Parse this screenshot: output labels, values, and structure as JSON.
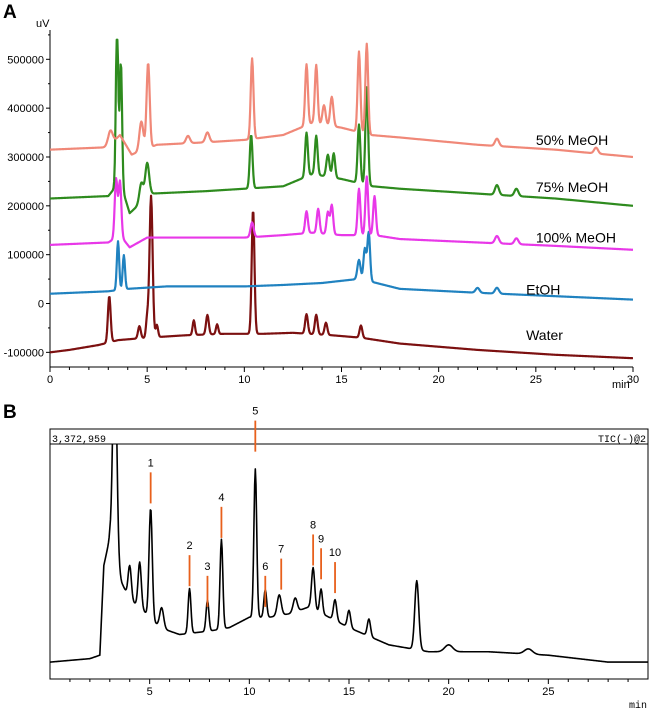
{
  "figure": {
    "panel_a_label": "A",
    "panel_b_label": "B"
  },
  "chart_data": [
    {
      "type": "line",
      "panel": "A",
      "ylabel": "uV",
      "xlabel": "min",
      "xlim": [
        0,
        30
      ],
      "ylim": [
        -130000,
        560000
      ],
      "xticks": [
        0,
        5,
        10,
        15,
        20,
        25,
        30
      ],
      "yticks": [
        {
          "value": -100000,
          "label": "-100000"
        },
        {
          "value": 0,
          "label": "0"
        },
        {
          "value": 100000,
          "label": "100000"
        },
        {
          "value": 200000,
          "label": "200000"
        },
        {
          "value": 300000,
          "label": "300000"
        },
        {
          "value": 400000,
          "label": "400000"
        },
        {
          "value": 500000,
          "label": "500000"
        }
      ],
      "grid": false,
      "series": [
        {
          "name": "50% MeOH",
          "color": "#f08878",
          "label_at": [
            25,
            325000
          ],
          "baseline": [
            [
              0,
              315000
            ],
            [
              3,
              320000
            ],
            [
              3.6,
              345000
            ],
            [
              4.2,
              305000
            ],
            [
              5.5,
              325000
            ],
            [
              8,
              330000
            ],
            [
              10,
              335000
            ],
            [
              12,
              345000
            ],
            [
              13.5,
              370000
            ],
            [
              15,
              360000
            ],
            [
              16.5,
              345000
            ],
            [
              18,
              340000
            ],
            [
              22,
              325000
            ],
            [
              26,
              315000
            ],
            [
              30,
              300000
            ]
          ],
          "peaks": [
            [
              3.1,
              30000,
              0.12
            ],
            [
              4.7,
              60000,
              0.1
            ],
            [
              5.05,
              175000,
              0.08
            ],
            [
              7.1,
              15000,
              0.1
            ],
            [
              8.1,
              20000,
              0.1
            ],
            [
              10.4,
              165000,
              0.07
            ],
            [
              13.2,
              125000,
              0.07
            ],
            [
              13.7,
              120000,
              0.07
            ],
            [
              14.1,
              40000,
              0.08
            ],
            [
              14.5,
              60000,
              0.08
            ],
            [
              15.9,
              165000,
              0.07
            ],
            [
              16.3,
              185000,
              0.07
            ],
            [
              23,
              15000,
              0.1
            ],
            [
              28.1,
              12000,
              0.1
            ]
          ]
        },
        {
          "name": "75% MeOH",
          "color": "#2e8b1e",
          "label_at": [
            25,
            228000
          ],
          "baseline": [
            [
              0,
              215000
            ],
            [
              3,
              220000
            ],
            [
              3.6,
              250000
            ],
            [
              4.1,
              185000
            ],
            [
              5.2,
              225000
            ],
            [
              8,
              230000
            ],
            [
              10,
              235000
            ],
            [
              12,
              240000
            ],
            [
              13.5,
              265000
            ],
            [
              15,
              255000
            ],
            [
              16.6,
              240000
            ],
            [
              18,
              235000
            ],
            [
              22,
              225000
            ],
            [
              26,
              215000
            ],
            [
              30,
              200000
            ]
          ],
          "peaks": [
            [
              3.45,
              340000,
              0.06
            ],
            [
              3.65,
              250000,
              0.06
            ],
            [
              4.7,
              40000,
              0.1
            ],
            [
              5.0,
              70000,
              0.1
            ],
            [
              10.35,
              110000,
              0.07
            ],
            [
              13.2,
              90000,
              0.07
            ],
            [
              13.7,
              80000,
              0.07
            ],
            [
              14.3,
              45000,
              0.08
            ],
            [
              14.6,
              50000,
              0.07
            ],
            [
              15.9,
              120000,
              0.07
            ],
            [
              16.3,
              200000,
              0.07
            ],
            [
              23,
              20000,
              0.1
            ],
            [
              24,
              15000,
              0.1
            ]
          ]
        },
        {
          "name": "100% MeOH",
          "color": "#e838e8",
          "label_at": [
            25,
            125000
          ],
          "baseline": [
            [
              0,
              120000
            ],
            [
              3,
              125000
            ],
            [
              3.6,
              140000
            ],
            [
              4.1,
              115000
            ],
            [
              5,
              135000
            ],
            [
              8,
              135000
            ],
            [
              10,
              135000
            ],
            [
              12,
              140000
            ],
            [
              13.5,
              145000
            ],
            [
              15,
              140000
            ],
            [
              16.7,
              140000
            ],
            [
              18,
              132000
            ],
            [
              22,
              125000
            ],
            [
              26,
              118000
            ],
            [
              30,
              110000
            ]
          ],
          "peaks": [
            [
              3.4,
              120000,
              0.07
            ],
            [
              3.6,
              110000,
              0.07
            ],
            [
              10.4,
              30000,
              0.08
            ],
            [
              13.2,
              45000,
              0.07
            ],
            [
              13.8,
              50000,
              0.07
            ],
            [
              14.3,
              45000,
              0.07
            ],
            [
              14.5,
              60000,
              0.07
            ],
            [
              15.9,
              95000,
              0.07
            ],
            [
              16.3,
              120000,
              0.07
            ],
            [
              16.7,
              80000,
              0.07
            ],
            [
              23,
              15000,
              0.1
            ],
            [
              24,
              12000,
              0.1
            ]
          ]
        },
        {
          "name": "EtOH",
          "color": "#2082c0",
          "label_at": [
            24.5,
            18000
          ],
          "baseline": [
            [
              0,
              20000
            ],
            [
              3,
              25000
            ],
            [
              4,
              30000
            ],
            [
              6,
              35000
            ],
            [
              8,
              35000
            ],
            [
              10,
              35000
            ],
            [
              12,
              38000
            ],
            [
              14,
              42000
            ],
            [
              15.8,
              50000
            ],
            [
              16.5,
              45000
            ],
            [
              18,
              30000
            ],
            [
              22,
              22000
            ],
            [
              26,
              15000
            ],
            [
              30,
              8000
            ]
          ],
          "peaks": [
            [
              3.5,
              100000,
              0.06
            ],
            [
              3.8,
              70000,
              0.06
            ],
            [
              15.9,
              40000,
              0.08
            ],
            [
              16.2,
              65000,
              0.07
            ],
            [
              16.4,
              100000,
              0.07
            ],
            [
              22,
              10000,
              0.1
            ],
            [
              23,
              12000,
              0.1
            ]
          ]
        },
        {
          "name": "Water",
          "color": "#7c1010",
          "label_at": [
            24.5,
            -75000
          ],
          "baseline": [
            [
              0,
              -100000
            ],
            [
              1,
              -95000
            ],
            [
              2.5,
              -85000
            ],
            [
              3.5,
              -75000
            ],
            [
              5,
              -70000
            ],
            [
              7,
              -65000
            ],
            [
              9,
              -62000
            ],
            [
              11,
              -62000
            ],
            [
              12.5,
              -60000
            ],
            [
              14.5,
              -65000
            ],
            [
              16,
              -70000
            ],
            [
              18,
              -82000
            ],
            [
              22,
              -95000
            ],
            [
              26,
              -105000
            ],
            [
              30,
              -112000
            ]
          ],
          "peaks": [
            [
              3.05,
              95000,
              0.07
            ],
            [
              4.6,
              25000,
              0.07
            ],
            [
              5.0,
              40000,
              0.06
            ],
            [
              5.2,
              290000,
              0.08
            ],
            [
              5.5,
              25000,
              0.06
            ],
            [
              7.4,
              30000,
              0.06
            ],
            [
              8.1,
              40000,
              0.07
            ],
            [
              8.6,
              20000,
              0.06
            ],
            [
              10.45,
              255000,
              0.07
            ],
            [
              13.2,
              40000,
              0.07
            ],
            [
              13.7,
              40000,
              0.07
            ],
            [
              14.2,
              25000,
              0.07
            ],
            [
              16.0,
              25000,
              0.07
            ]
          ]
        }
      ]
    },
    {
      "type": "line",
      "panel": "B",
      "title": "3,372,959",
      "title_right": "TIC(-)@2",
      "xlabel": "min",
      "xlim": [
        0,
        30
      ],
      "ylim": [
        0,
        3372959
      ],
      "xticks": [
        5,
        10,
        15,
        20,
        25
      ],
      "grid": false,
      "series": [
        {
          "color": "#000000",
          "baseline": [
            [
              0,
              0.02
            ],
            [
              2,
              0.03
            ],
            [
              2.5,
              0.04
            ],
            [
              2.7,
              0.3
            ],
            [
              3.0,
              0.38
            ],
            [
              3.6,
              0.25
            ],
            [
              4.0,
              0.2
            ],
            [
              4.5,
              0.18
            ],
            [
              5.5,
              0.12
            ],
            [
              6.5,
              0.1
            ],
            [
              8,
              0.11
            ],
            [
              9,
              0.12
            ],
            [
              10,
              0.15
            ],
            [
              11,
              0.15
            ],
            [
              12,
              0.16
            ],
            [
              13,
              0.18
            ],
            [
              14,
              0.15
            ],
            [
              15,
              0.12
            ],
            [
              17,
              0.07
            ],
            [
              18,
              0.06
            ],
            [
              19,
              0.05
            ],
            [
              22,
              0.05
            ],
            [
              25,
              0.04
            ],
            [
              28,
              0.02
            ],
            [
              30,
              0.02
            ]
          ],
          "peaks": [
            [
              3.25,
              0.62,
              0.1
            ],
            [
              4.0,
              0.1,
              0.08
            ],
            [
              4.5,
              0.13,
              0.08
            ],
            [
              5.05,
              0.32,
              0.08
            ],
            [
              5.6,
              0.06,
              0.1
            ],
            [
              7.0,
              0.13,
              0.07
            ],
            [
              7.9,
              0.09,
              0.07
            ],
            [
              8.6,
              0.26,
              0.07
            ],
            [
              10.3,
              0.43,
              0.07
            ],
            [
              10.8,
              0.08,
              0.07
            ],
            [
              11.5,
              0.06,
              0.1
            ],
            [
              12.3,
              0.04,
              0.1
            ],
            [
              13.2,
              0.12,
              0.08
            ],
            [
              13.6,
              0.07,
              0.07
            ],
            [
              14.3,
              0.06,
              0.08
            ],
            [
              15.0,
              0.05,
              0.08
            ],
            [
              16.0,
              0.05,
              0.08
            ],
            [
              18.4,
              0.2,
              0.1
            ],
            [
              20,
              0.02,
              0.2
            ],
            [
              24,
              0.015,
              0.2
            ]
          ]
        }
      ],
      "annotations": [
        {
          "label": "1",
          "x": 5.05,
          "y_bottom": 0.48,
          "y_top": 0.57
        },
        {
          "label": "2",
          "x": 7.0,
          "y_bottom": 0.24,
          "y_top": 0.33
        },
        {
          "label": "3",
          "x": 7.9,
          "y_bottom": 0.18,
          "y_top": 0.27
        },
        {
          "label": "4",
          "x": 8.6,
          "y_bottom": 0.38,
          "y_top": 0.47
        },
        {
          "label": "5",
          "x": 10.3,
          "y_bottom": 0.63,
          "y_top": 0.72
        },
        {
          "label": "6",
          "x": 10.8,
          "y_bottom": 0.18,
          "y_top": 0.27
        },
        {
          "label": "7",
          "x": 11.6,
          "y_bottom": 0.23,
          "y_top": 0.32
        },
        {
          "label": "8",
          "x": 13.2,
          "y_bottom": 0.3,
          "y_top": 0.39
        },
        {
          "label": "9",
          "x": 13.6,
          "y_bottom": 0.26,
          "y_top": 0.35
        },
        {
          "label": "10",
          "x": 14.3,
          "y_bottom": 0.22,
          "y_top": 0.31
        }
      ],
      "annotation_color": "#e8601c"
    }
  ]
}
